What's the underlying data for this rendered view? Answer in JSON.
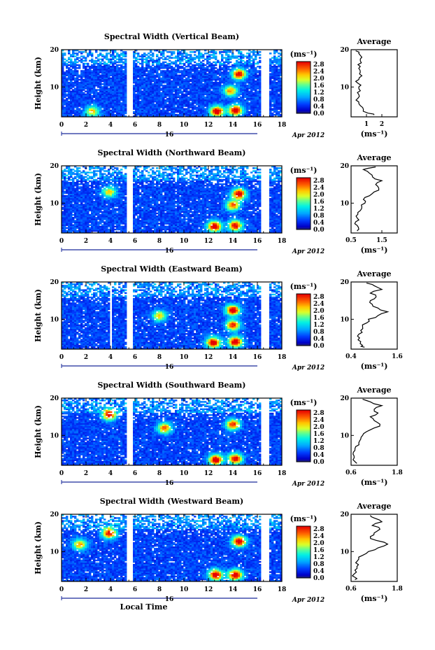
{
  "figure": {
    "xlabel": "Local Time",
    "date_label": "16",
    "date_suffix": "Apr 2012",
    "average_title": "Average",
    "colorbar_unit": "(ms⁻¹)",
    "avg_unit": "(ms⁻¹)"
  },
  "chart_data": [
    {
      "type": "heatmap",
      "title": "Spectral Width (Vertical Beam)",
      "ylabel": "Height (km)",
      "xlim": [
        0,
        18
      ],
      "ylim": [
        2,
        20
      ],
      "xticks": [
        0,
        2,
        4,
        6,
        8,
        10,
        12,
        14,
        16,
        18
      ],
      "yticks": [
        10,
        20
      ],
      "colorbar_ticks": [
        "2.8",
        "2.4",
        "2.0",
        "1.6",
        "1.2",
        "0.8",
        "0.4",
        "0.0"
      ],
      "data_gaps": [
        [
          5.4,
          5.85
        ],
        [
          16.3,
          17.0
        ]
      ],
      "hotspots": [
        {
          "x": 12.7,
          "y": 3.5,
          "value": 2.6
        },
        {
          "x": 14.2,
          "y": 3.8,
          "value": 2.6
        },
        {
          "x": 14.5,
          "y": 13.5,
          "value": 2.4
        },
        {
          "x": 13.8,
          "y": 9.0,
          "value": 1.8
        },
        {
          "x": 2.5,
          "y": 3.5,
          "value": 1.6
        }
      ],
      "average": {
        "title": "Average",
        "xlim": [
          0,
          3
        ],
        "xticks": [
          1,
          2
        ],
        "ylim": [
          2,
          20
        ],
        "yticks": [
          10,
          20
        ],
        "height": [
          2.5,
          3,
          4,
          5,
          6,
          7,
          8,
          9,
          10,
          11,
          12,
          13,
          14,
          15,
          16,
          17,
          18,
          19,
          19.7
        ],
        "value": [
          1.5,
          1.1,
          0.8,
          0.6,
          0.5,
          0.45,
          0.5,
          0.6,
          0.5,
          0.45,
          0.5,
          0.7,
          0.6,
          0.5,
          0.45,
          0.6,
          0.7,
          0.5,
          0.3
        ]
      }
    },
    {
      "type": "heatmap",
      "title": "Spectral Width (Northward Beam)",
      "ylabel": "Height (km)",
      "xlim": [
        0,
        18
      ],
      "ylim": [
        2,
        20
      ],
      "xticks": [
        0,
        2,
        4,
        6,
        8,
        10,
        12,
        14,
        16,
        18
      ],
      "yticks": [
        10,
        20
      ],
      "colorbar_ticks": [
        "2.8",
        "2.4",
        "2.0",
        "1.6",
        "1.2",
        "0.8",
        "0.4",
        "0.0"
      ],
      "data_gaps": [
        [
          5.4,
          5.85
        ],
        [
          16.3,
          17.0
        ]
      ],
      "hotspots": [
        {
          "x": 12.5,
          "y": 3.8,
          "value": 2.6
        },
        {
          "x": 14.2,
          "y": 4.0,
          "value": 2.4
        },
        {
          "x": 14.5,
          "y": 12.5,
          "value": 2.6
        },
        {
          "x": 14.0,
          "y": 9.5,
          "value": 2.0
        },
        {
          "x": 3.9,
          "y": 13.0,
          "value": 1.6
        }
      ],
      "average": {
        "title": "Average",
        "xlim": [
          0.5,
          2.0
        ],
        "xticks": [
          0.5,
          1.5
        ],
        "ylim": [
          2,
          20
        ],
        "yticks": [
          10,
          20
        ],
        "height": [
          2.5,
          3,
          4,
          5,
          6,
          7,
          8,
          9,
          10,
          11,
          12,
          13,
          14,
          15,
          16,
          17,
          18,
          19,
          19.7
        ],
        "value": [
          0.7,
          0.75,
          0.7,
          0.65,
          0.7,
          0.72,
          0.8,
          0.85,
          0.95,
          0.9,
          1.1,
          1.25,
          1.4,
          1.3,
          1.5,
          1.2,
          1.1,
          0.9,
          1.3
        ]
      }
    },
    {
      "type": "heatmap",
      "title": "Spectral Width (Eastward Beam)",
      "ylabel": "Height (km)",
      "xlim": [
        0,
        18
      ],
      "ylim": [
        2,
        20
      ],
      "xticks": [
        0,
        2,
        4,
        6,
        8,
        10,
        12,
        14,
        16,
        18
      ],
      "yticks": [
        10,
        20
      ],
      "colorbar_ticks": [
        "2.8",
        "2.4",
        "2.0",
        "1.6",
        "1.2",
        "0.8",
        "0.4",
        "0.0"
      ],
      "data_gaps": [
        [
          5.4,
          5.85
        ],
        [
          16.3,
          17.0
        ],
        [
          3.9,
          4.1
        ]
      ],
      "hotspots": [
        {
          "x": 12.4,
          "y": 3.8,
          "value": 2.6
        },
        {
          "x": 14.2,
          "y": 4.0,
          "value": 2.6
        },
        {
          "x": 14.0,
          "y": 12.5,
          "value": 2.6
        },
        {
          "x": 14.0,
          "y": 8.5,
          "value": 2.2
        },
        {
          "x": 8.0,
          "y": 11.0,
          "value": 1.6
        }
      ],
      "average": {
        "title": "Average",
        "xlim": [
          0.4,
          1.6
        ],
        "xticks": [
          0.4,
          1.6
        ],
        "ylim": [
          2,
          20
        ],
        "yticks": [
          10,
          20
        ],
        "height": [
          2.5,
          3,
          4,
          5,
          6,
          7,
          8,
          9,
          10,
          11,
          12,
          13,
          14,
          15,
          16,
          17,
          18,
          19,
          19.7
        ],
        "value": [
          0.75,
          0.7,
          0.65,
          0.62,
          0.6,
          0.65,
          0.7,
          0.8,
          0.85,
          1.1,
          1.35,
          1.1,
          0.95,
          0.9,
          1.05,
          0.9,
          1.2,
          1.0,
          0.8
        ]
      }
    },
    {
      "type": "heatmap",
      "title": "Spectral Width (Southward Beam)",
      "ylabel": "Height (km)",
      "xlim": [
        0,
        18
      ],
      "ylim": [
        2,
        20
      ],
      "xticks": [
        0,
        2,
        4,
        6,
        8,
        10,
        12,
        14,
        16,
        18
      ],
      "yticks": [
        10,
        20
      ],
      "colorbar_ticks": [
        "2.8",
        "2.4",
        "2.0",
        "1.6",
        "1.2",
        "0.8",
        "0.4",
        "0.0"
      ],
      "data_gaps": [
        [
          5.4,
          5.85
        ],
        [
          16.3,
          17.0
        ]
      ],
      "hotspots": [
        {
          "x": 12.6,
          "y": 3.5,
          "value": 2.6
        },
        {
          "x": 14.2,
          "y": 3.8,
          "value": 2.4
        },
        {
          "x": 14.0,
          "y": 13.0,
          "value": 2.2
        },
        {
          "x": 3.9,
          "y": 15.5,
          "value": 2.4
        },
        {
          "x": 8.4,
          "y": 12.0,
          "value": 2.0
        }
      ],
      "average": {
        "title": "Average",
        "xlim": [
          0.6,
          1.8
        ],
        "xticks": [
          0.6,
          1.8
        ],
        "ylim": [
          2,
          20
        ],
        "yticks": [
          10,
          20
        ],
        "height": [
          2.5,
          3,
          4,
          5,
          6,
          7,
          8,
          9,
          10,
          11,
          12,
          13,
          14,
          15,
          16,
          17,
          18,
          19,
          19.7
        ],
        "value": [
          0.75,
          0.7,
          0.68,
          0.65,
          0.7,
          0.72,
          0.8,
          0.85,
          0.9,
          1.0,
          1.2,
          1.35,
          1.2,
          1.1,
          1.3,
          1.2,
          1.4,
          1.1,
          0.9
        ]
      }
    },
    {
      "type": "heatmap",
      "title": "Spectral Width (Westward Beam)",
      "ylabel": "Height (km)",
      "xlim": [
        0,
        18
      ],
      "ylim": [
        2,
        20
      ],
      "xticks": [
        0,
        2,
        4,
        6,
        8,
        10,
        12,
        14,
        16,
        18
      ],
      "yticks": [
        10,
        20
      ],
      "colorbar_ticks": [
        "2.8",
        "2.4",
        "2.0",
        "1.6",
        "1.2",
        "0.8",
        "0.4",
        "0.0"
      ],
      "data_gaps": [
        [
          5.4,
          5.85
        ],
        [
          16.3,
          17.0
        ]
      ],
      "hotspots": [
        {
          "x": 12.6,
          "y": 3.8,
          "value": 2.6
        },
        {
          "x": 14.2,
          "y": 3.8,
          "value": 2.6
        },
        {
          "x": 14.5,
          "y": 12.8,
          "value": 2.6
        },
        {
          "x": 3.9,
          "y": 15.0,
          "value": 2.4
        },
        {
          "x": 1.5,
          "y": 12.0,
          "value": 1.8
        }
      ],
      "average": {
        "title": "Average",
        "xlim": [
          0.6,
          1.8
        ],
        "xticks": [
          0.6,
          1.8
        ],
        "ylim": [
          2,
          20
        ],
        "yticks": [
          10,
          20
        ],
        "height": [
          2.5,
          3,
          4,
          5,
          6,
          7,
          8,
          9,
          10,
          11,
          12,
          13,
          14,
          15,
          16,
          17,
          18,
          19,
          19.7
        ],
        "value": [
          0.7,
          0.72,
          0.68,
          0.7,
          0.75,
          0.72,
          0.8,
          0.9,
          1.05,
          1.3,
          1.55,
          1.25,
          1.1,
          1.2,
          1.35,
          1.15,
          1.4,
          1.2,
          1.1
        ]
      }
    }
  ]
}
